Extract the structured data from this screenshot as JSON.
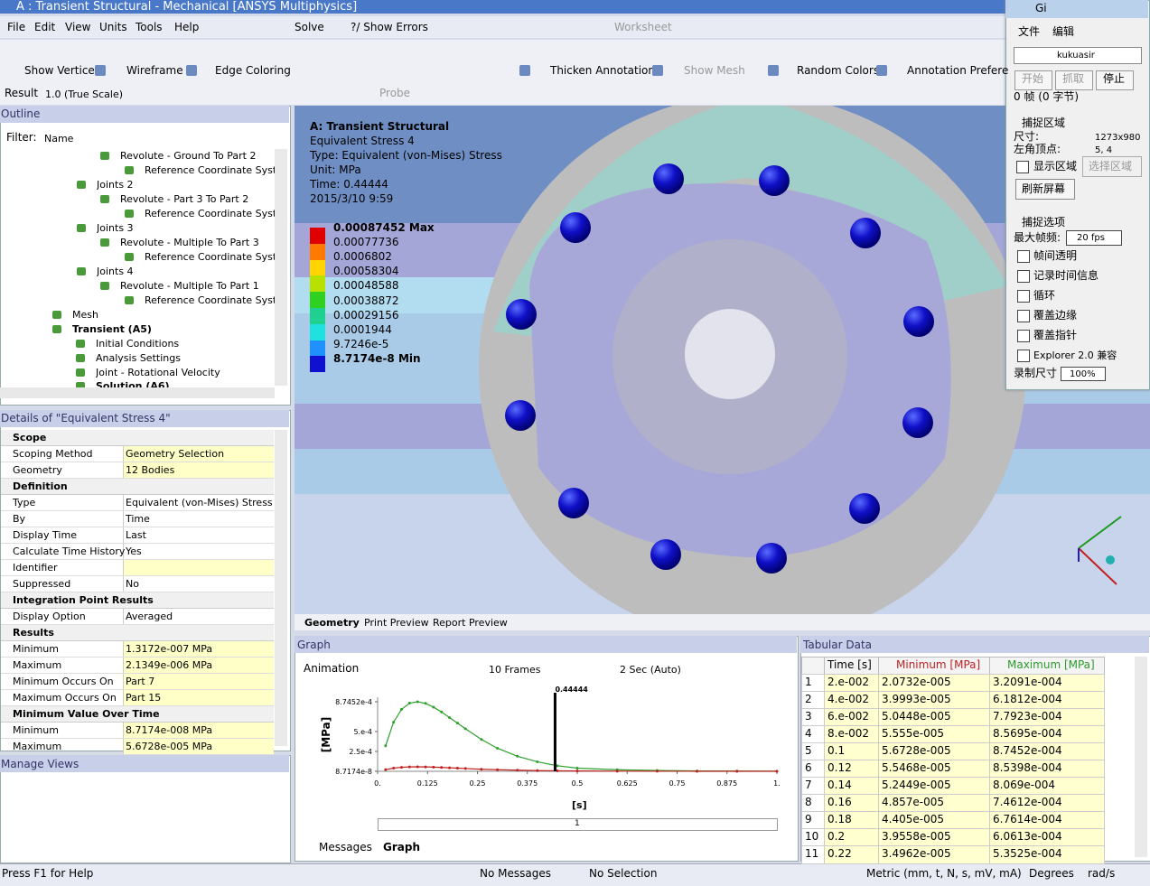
{
  "window": {
    "title": "A : Transient Structural - Mechanical [ANSYS Multiphysics]"
  },
  "menu": [
    "File",
    "Edit",
    "View",
    "Units",
    "Tools",
    "Help"
  ],
  "toolbar1": {
    "solve": "Solve",
    "show_errors": "?/ Show Errors",
    "worksheet": "Worksheet"
  },
  "toolbar2": [
    "Show Vertices",
    "Wireframe",
    "Edge Coloring",
    "Thicken Annotations",
    "Show Mesh",
    "Random Colors",
    "Annotation Prefere"
  ],
  "toolbar3": {
    "result": "Result",
    "scale": "1.0 (True Scale)",
    "probe": "Probe"
  },
  "outline": {
    "title": "Outline",
    "filter": "Filter:",
    "filter_value": "Name",
    "items": [
      "Revolute - Ground To Part 2",
      "Reference Coordinate System",
      "Joints 2",
      "Revolute - Part 3 To Part 2",
      "Reference Coordinate System",
      "Joints 3",
      "Revolute - Multiple To Part 3",
      "Reference Coordinate System",
      "Joints 4",
      "Revolute - Multiple To Part 1",
      "Reference Coordinate System",
      "Mesh",
      "Transient (A5)",
      "Initial Conditions",
      "Analysis Settings",
      "Joint - Rotational Velocity",
      "Solution (A6)"
    ]
  },
  "details": {
    "title": "Details of \"Equivalent Stress 4\"",
    "rows": [
      {
        "section": "Scope"
      },
      {
        "key": "Scoping Method",
        "value": "Geometry Selection"
      },
      {
        "key": "Geometry",
        "value": "12 Bodies"
      },
      {
        "section": "Definition"
      },
      {
        "key": "Type",
        "value": "Equivalent (von-Mises) Stress"
      },
      {
        "key": "By",
        "value": "Time"
      },
      {
        "key": "Display Time",
        "value": "Last"
      },
      {
        "key": "Calculate Time History",
        "value": "Yes"
      },
      {
        "key": "Identifier"
      },
      {
        "key": "Suppressed",
        "value": "No"
      },
      {
        "section": "Integration Point Results"
      },
      {
        "key": "Display Option",
        "value": "Averaged"
      },
      {
        "section": "Results"
      },
      {
        "key": "Minimum",
        "value": "1.3172e-007 MPa"
      },
      {
        "key": "Maximum",
        "value": "2.1349e-006 MPa"
      },
      {
        "key": "Minimum Occurs On",
        "value": "Part 7"
      },
      {
        "key": "Maximum Occurs On",
        "value": "Part 15"
      },
      {
        "section": "Minimum Value Over Time"
      },
      {
        "key": "Minimum",
        "value": "8.7174e-008 MPa"
      },
      {
        "key": "Maximum",
        "value": "5.6728e-005 MPa"
      }
    ]
  },
  "manage_views": "Manage Views",
  "viewport": {
    "header": [
      "A: Transient Structural",
      "Equivalent Stress 4",
      "Type: Equivalent (von-Mises) Stress",
      "Unit: MPa",
      "Time: 0.44444",
      "2015/3/10 9:59"
    ],
    "legend": [
      "0.00087452 Max",
      "0.00077736",
      "0.0006802",
      "0.00058304",
      "0.00048588",
      "0.00038872",
      "0.00029156",
      "0.0001944",
      "9.7246e-5",
      "8.7174e-8 Min"
    ],
    "tabs": [
      "Geometry",
      "Print Preview",
      "Report Preview"
    ]
  },
  "graph": {
    "title": "Graph",
    "animation": "Animation",
    "frames": "10 Frames",
    "duration": "2 Sec (Auto)",
    "ylabel": "[MPa]",
    "xlabel": "[s]",
    "frame_label": "1",
    "tabs": [
      "Messages",
      "Graph"
    ],
    "xlim": [
      0,
      1
    ],
    "ylim": [
      8.7174e-08,
      0.00087452
    ],
    "xticks": [
      {
        "value": 0,
        "label": "0."
      },
      0.125,
      0.25,
      0.375,
      0.5,
      0.625,
      0.75,
      0.875,
      {
        "value": 1,
        "label": "1."
      }
    ],
    "yticks": [
      {
        "value": 0.00087452,
        "label": "8.7452e-4"
      },
      {
        "value": 0.0005,
        "label": "5.e-4"
      },
      {
        "value": 0.00025,
        "label": "2.5e-4"
      },
      {
        "value": 8.7174e-08,
        "label": "8.7174e-8"
      }
    ],
    "marker": 0.44444,
    "x": [
      0.02,
      0.04,
      0.06,
      0.08,
      0.1,
      0.12,
      0.14,
      0.16,
      0.18,
      0.2,
      0.22,
      0.26,
      0.3,
      0.35,
      0.4,
      0.45,
      0.5,
      0.6,
      0.7,
      0.8,
      0.9,
      1.0
    ],
    "series": [
      {
        "name": "Maximum",
        "color": "#2ea02e",
        "values": [
          0.00032091,
          0.00061812,
          0.00077923,
          0.00085695,
          0.00087452,
          0.00085398,
          0.0008069,
          0.00074612,
          0.00067614,
          0.00060613,
          0.00053525,
          0.0004,
          0.00029,
          0.00019,
          0.00012,
          7e-05,
          4e-05,
          2e-05,
          1e-05,
          5e-06,
          3e-06,
          2e-06
        ]
      },
      {
        "name": "Minimum",
        "color": "#c02020",
        "values": [
          2.0732e-05,
          3.9993e-05,
          5.0448e-05,
          5.555e-05,
          5.6728e-05,
          5.5468e-05,
          5.2449e-05,
          4.857e-05,
          4.405e-05,
          3.9558e-05,
          3.4962e-05,
          2.6e-05,
          2e-05,
          1.4e-05,
          9e-06,
          6e-06,
          4e-06,
          2e-06,
          1e-06,
          5e-07,
          3e-07,
          2e-07
        ]
      }
    ]
  },
  "tabular": {
    "title": "Tabular Data",
    "headers": [
      "Time [s]",
      "Minimum [MPa]",
      "Maximum [MPa]"
    ],
    "rows": [
      [
        "1",
        "2.e-002",
        "2.0732e-005",
        "3.2091e-004"
      ],
      [
        "2",
        "4.e-002",
        "3.9993e-005",
        "6.1812e-004"
      ],
      [
        "3",
        "6.e-002",
        "5.0448e-005",
        "7.7923e-004"
      ],
      [
        "4",
        "8.e-002",
        "5.555e-005",
        "8.5695e-004"
      ],
      [
        "5",
        "0.1",
        "5.6728e-005",
        "8.7452e-004"
      ],
      [
        "6",
        "0.12",
        "5.5468e-005",
        "8.5398e-004"
      ],
      [
        "7",
        "0.14",
        "5.2449e-005",
        "8.069e-004"
      ],
      [
        "8",
        "0.16",
        "4.857e-005",
        "7.4612e-004"
      ],
      [
        "9",
        "0.18",
        "4.405e-005",
        "6.7614e-004"
      ],
      [
        "10",
        "0.2",
        "3.9558e-005",
        "6.0613e-004"
      ],
      [
        "11",
        "0.22",
        "3.4962e-005",
        "5.3525e-004"
      ]
    ]
  },
  "status": [
    "Press F1 for Help",
    "No Messages",
    "No Selection",
    "Metric (mm, t, N, s, mV, mA)",
    "Degrees",
    "rad/s"
  ],
  "capture": {
    "title": "Gi",
    "menu": [
      "文件",
      "编辑"
    ],
    "name": "kukuasir",
    "buttons": [
      "开始",
      "抓取",
      "停止"
    ],
    "frames": "0 帧 (0 字节)",
    "area": "捕捉区域",
    "size_label": "尺寸:",
    "size": "1273x980",
    "corner_label": "左角顶点:",
    "corner": "5, 4",
    "show_area": "显示区域",
    "select_area": "选择区域",
    "refresh": "刷新屏幕",
    "options": "捕捉选项",
    "max_fps": "最大帧频:",
    "fps": "20 fps",
    "checks": [
      "帧间透明",
      "记录时间信息",
      "循环",
      "覆盖边缘",
      "覆盖指针",
      "Explorer 2.0 兼容"
    ],
    "rec_size": "录制尺寸",
    "rec_value": "100%"
  }
}
